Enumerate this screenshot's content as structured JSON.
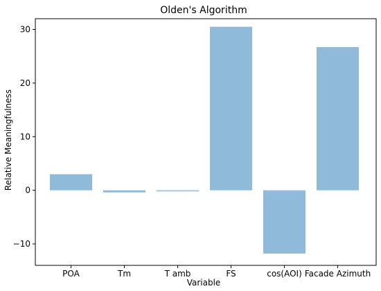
{
  "chart_data": {
    "type": "bar",
    "title": "Olden's Algorithm",
    "xlabel": "Variable",
    "ylabel": "Relative Meaningfulness",
    "categories": [
      "POA",
      "Tm",
      "T amb",
      "FS",
      "cos(AOI)",
      "Facade Azimuth"
    ],
    "values": [
      3.0,
      -0.4,
      -0.2,
      30.5,
      -11.8,
      26.7
    ],
    "ylim": [
      -14,
      32
    ],
    "yticks": [
      -10,
      0,
      10,
      20,
      30
    ],
    "grid": false,
    "bar_color": "#8fbad9"
  }
}
